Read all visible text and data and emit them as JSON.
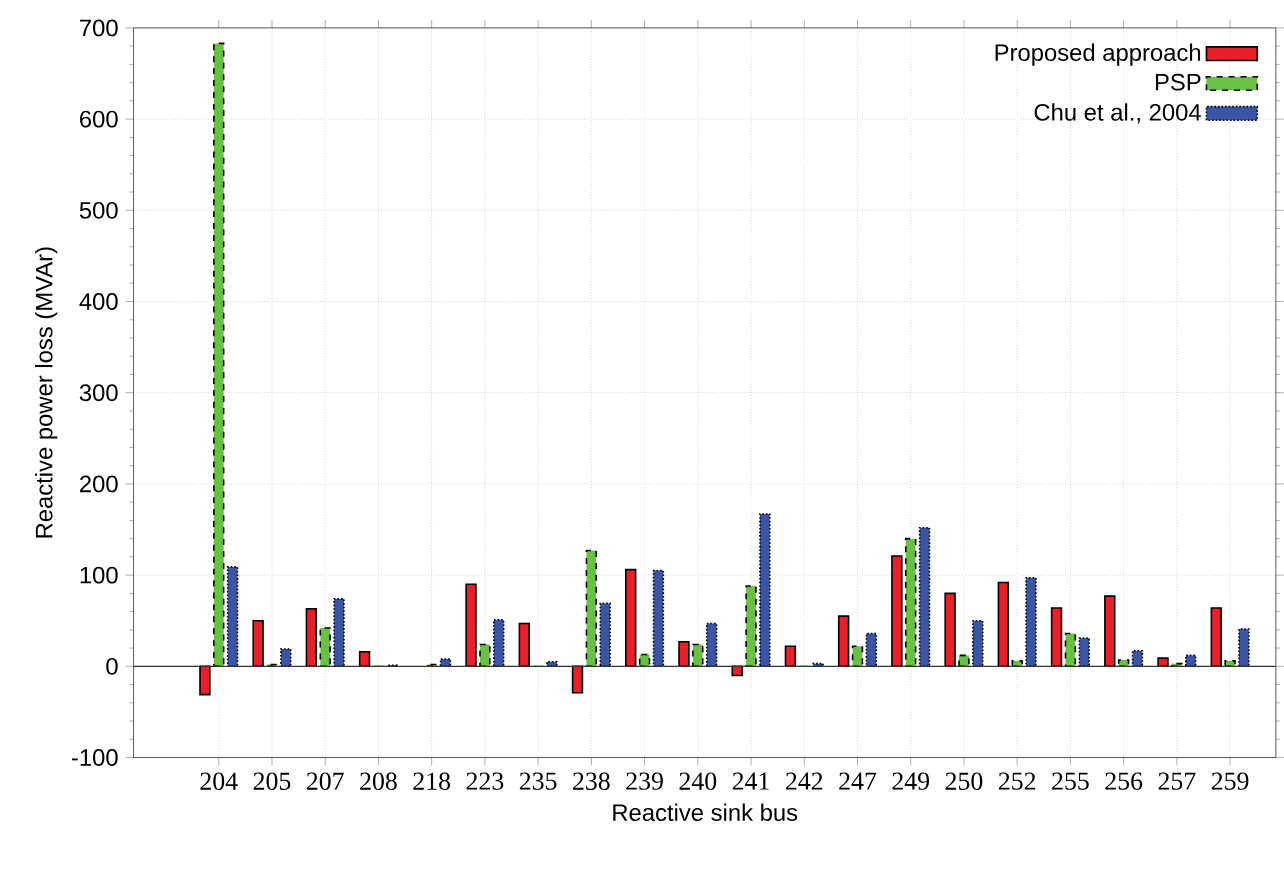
{
  "chart_data": {
    "type": "bar",
    "xlabel": "Reactive sink bus",
    "ylabel": "Reactive power loss (MVAr)",
    "categories": [
      "204",
      "205",
      "207",
      "208",
      "218",
      "223",
      "235",
      "238",
      "239",
      "240",
      "241",
      "242",
      "247",
      "249",
      "250",
      "252",
      "255",
      "256",
      "257",
      "259"
    ],
    "series": [
      {
        "name": "Proposed approach",
        "color": "#e8202a",
        "line_style": "solid",
        "values": [
          -31,
          50,
          63,
          16,
          null,
          90,
          47,
          -29,
          106,
          27,
          -10,
          22,
          55,
          121,
          80,
          92,
          64,
          77,
          9,
          64
        ]
      },
      {
        "name": "PSP",
        "color": "#6abf45",
        "line_style": "dashed",
        "values": [
          683,
          2,
          42,
          0,
          2,
          24,
          0,
          127,
          13,
          24,
          88,
          0,
          22,
          140,
          12,
          6,
          36,
          7,
          3,
          6
        ]
      },
      {
        "name": "Chu et al., 2004",
        "color": "#3a55a4",
        "line_style": "dotted",
        "values": [
          109,
          19,
          74,
          1,
          8,
          51,
          5,
          69,
          105,
          47,
          167,
          3,
          36,
          152,
          50,
          97,
          31,
          17,
          12,
          41
        ]
      }
    ],
    "ylim": [
      -100,
      700
    ],
    "yticks": [
      -100,
      0,
      100,
      200,
      300,
      400,
      500,
      600,
      700
    ],
    "grid": true,
    "legend": "top right",
    "ref_lines": [
      {
        "axis": "y",
        "value": 0
      }
    ]
  }
}
